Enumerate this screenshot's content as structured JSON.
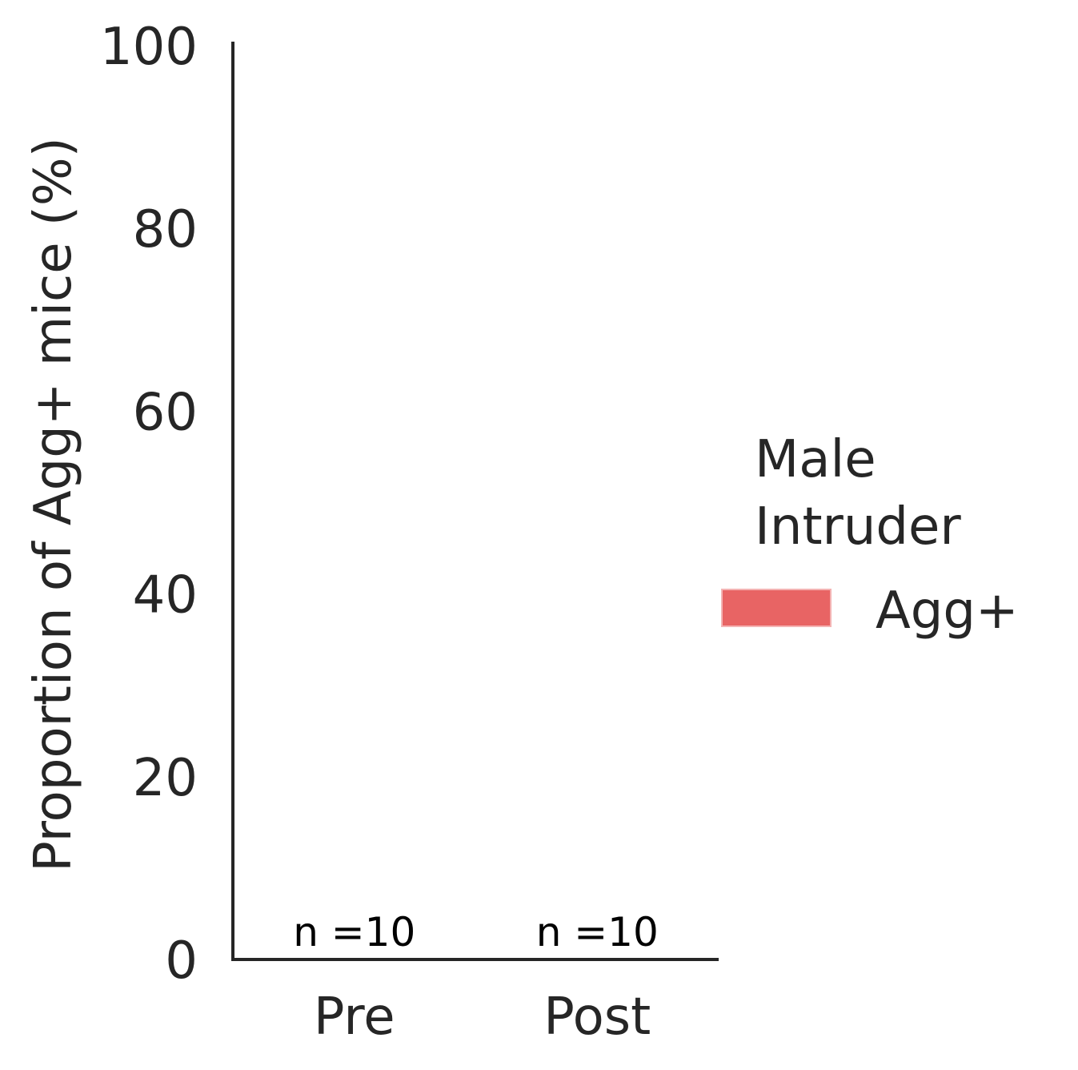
{
  "chart_data": {
    "type": "bar",
    "categories": [
      "Pre",
      "Post"
    ],
    "series": [
      {
        "name": "Agg+",
        "values": [
          0,
          0
        ],
        "color": "#e86464"
      }
    ],
    "annotations": [
      "n =10",
      "n =10"
    ],
    "ylabel": "Proportion of Agg+ mice (%)",
    "xlabel": "",
    "ylim": [
      0,
      100
    ],
    "yticks": [
      0,
      20,
      40,
      60,
      80,
      100
    ],
    "grid": false,
    "legend": {
      "title_lines": [
        "Male",
        "Intruder"
      ],
      "placement": "right",
      "entries": [
        {
          "label": "Agg+",
          "color": "#e86464"
        }
      ]
    }
  }
}
